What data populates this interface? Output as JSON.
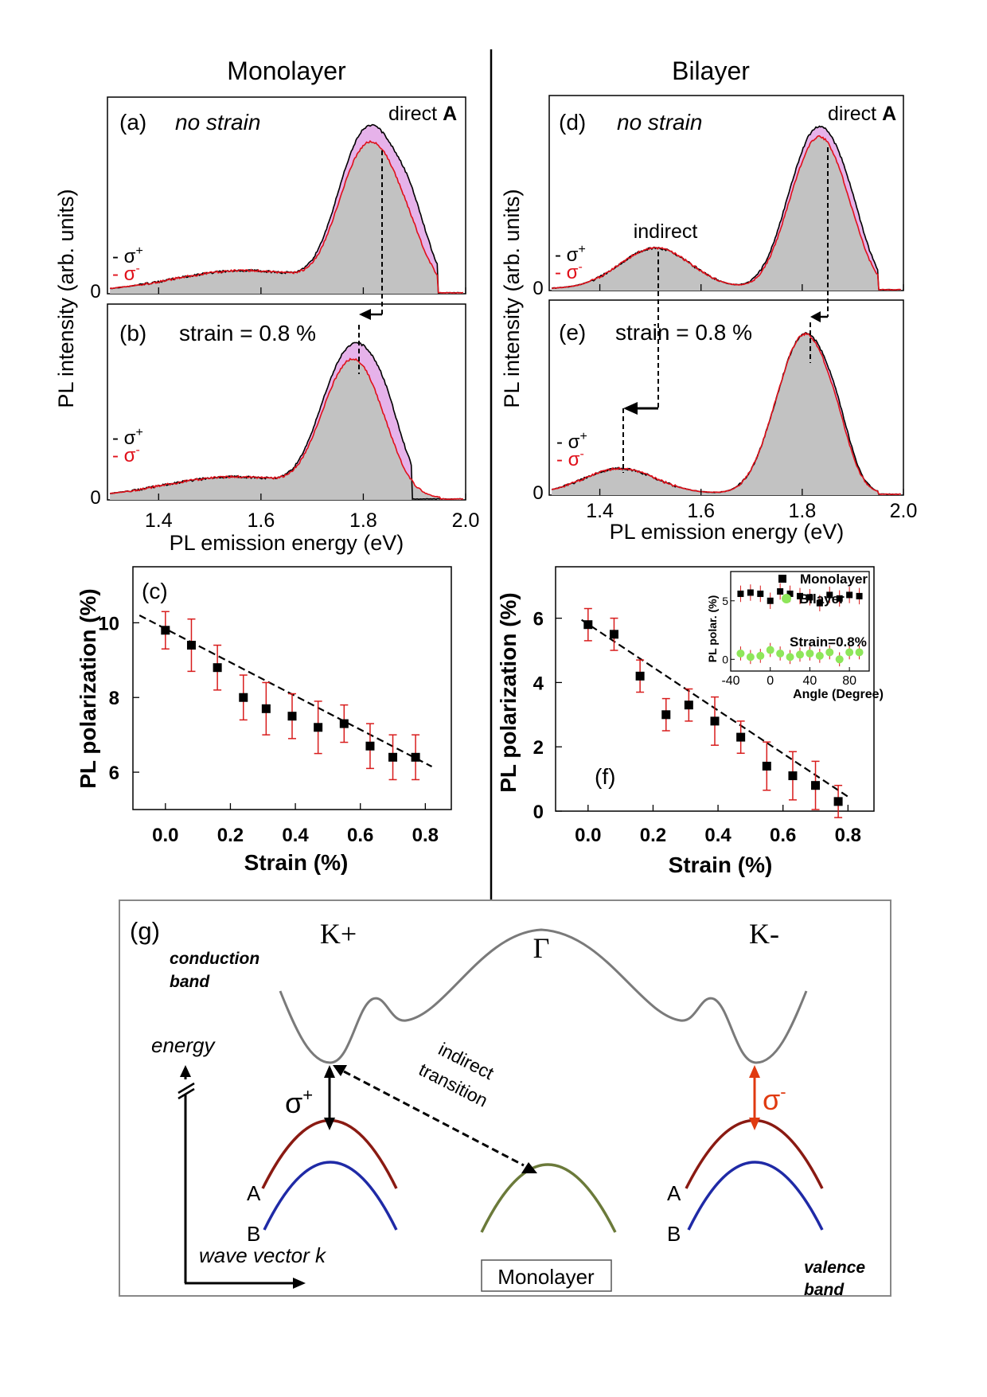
{
  "headers": {
    "left": "Monolayer",
    "right": "Bilayer"
  },
  "shared": {
    "pl_ylabel": "PL intensity (arb. units)",
    "pl_xlabel": "PL emission energy (eV)",
    "pol_ylabel": "PL polarization (%)",
    "strain_xlabel": "Strain (%)",
    "legend_plus_dash": "-",
    "legend_minus_dash": "-",
    "legend_plus": "σ",
    "legend_plus_sup": "+",
    "legend_minus": "σ",
    "legend_minus_sup": "-",
    "zero": "0"
  },
  "panels": {
    "a": {
      "label": "(a)",
      "condition": "no strain",
      "peak_label": "direct ",
      "peak_letter": "A"
    },
    "b": {
      "label": "(b)",
      "condition": "strain = 0.8 %"
    },
    "c": {
      "label": "(c)"
    },
    "d": {
      "label": "(d)",
      "condition": "no strain",
      "peak_label": "direct ",
      "peak_letter": "A",
      "indirect_label": "indirect"
    },
    "e": {
      "label": "(e)",
      "condition": "strain = 0.8 %"
    },
    "f": {
      "label": "(f)"
    },
    "inset": {
      "ylabel": "PL polar. (%)",
      "xlabel": "Angle (Degree)",
      "legend_mono": "Monolayer",
      "legend_bi": "Bilayer",
      "strain": "Strain=0.8%"
    },
    "g": {
      "label": "(g)",
      "kplus": "K+",
      "gamma": "Γ",
      "kminus": "K-",
      "conduction_1": "conduction",
      "conduction_2": "band",
      "energy": "energy",
      "wavevector": "wave vector k",
      "valence_1": "valence",
      "valence_2": "band",
      "indirect_1": "indirect",
      "indirect_2": "transition",
      "sigma_plus": "σ",
      "sigma_plus_sup": "+",
      "sigma_minus": "σ",
      "sigma_minus_sup": "-",
      "A_left": "A",
      "B_left": "B",
      "A_right": "A",
      "B_right": "B",
      "box_label": "Monolayer"
    }
  },
  "colors": {
    "sigma_plus": "#000000",
    "sigma_minus": "#e0101a",
    "fill_gray": "#c2c2c2",
    "fill_pink": "#e6b2ea",
    "error_bar": "#d81c1c",
    "inset_bilayer": "#8ee65a",
    "band_A": "#8a1a12",
    "band_B": "#1f2aa6",
    "band_gamma": "#6b7a3a",
    "band_conduction": "#777777",
    "arrow_sigma_minus": "#e03a10"
  },
  "chart_data": [
    {
      "id": "a",
      "type": "area",
      "title": "no strain",
      "xlabel": "PL emission energy (eV)",
      "ylabel": "PL intensity (arb. units)",
      "xlim": [
        1.3,
        2.0
      ],
      "ylim": [
        0,
        1.1
      ],
      "xticks": [
        "1.4",
        "1.6",
        "1.8",
        "2.0"
      ],
      "xticks_visible": false,
      "series": [
        {
          "name": "σ+",
          "peaks": [
            [
              1.57,
              0.12,
              0.14
            ],
            [
              1.83,
              0.8,
              0.055
            ],
            [
              1.77,
              0.25,
              0.04
            ],
            [
              1.9,
              0.18,
              0.03
            ]
          ],
          "cutoff": 1.945
        },
        {
          "name": "σ-",
          "peaks": [
            [
              1.57,
              0.12,
              0.14
            ],
            [
              1.83,
              0.72,
              0.053
            ],
            [
              1.77,
              0.23,
              0.04
            ],
            [
              1.9,
              0.07,
              0.03
            ]
          ],
          "cutoff": 1.945
        }
      ],
      "annotations": [
        {
          "text": "direct A",
          "x": 1.83
        }
      ]
    },
    {
      "id": "b",
      "type": "area",
      "title": "strain = 0.8 %",
      "xlabel": "PL emission energy (eV)",
      "ylabel": "PL intensity (arb. units)",
      "xlim": [
        1.3,
        2.0
      ],
      "ylim": [
        0,
        1.1
      ],
      "xticks": [
        "1.4",
        "1.6",
        "1.8",
        "2.0"
      ],
      "series": [
        {
          "name": "σ+",
          "peaks": [
            [
              1.55,
              0.12,
              0.14
            ],
            [
              1.79,
              0.72,
              0.05
            ],
            [
              1.73,
              0.22,
              0.04
            ],
            [
              1.85,
              0.22,
              0.035
            ]
          ],
          "cutoff": 1.895
        },
        {
          "name": "σ-",
          "peaks": [
            [
              1.55,
              0.12,
              0.14
            ],
            [
              1.79,
              0.66,
              0.048
            ],
            [
              1.73,
              0.21,
              0.04
            ],
            [
              1.85,
              0.07,
              0.035
            ]
          ],
          "cutoff": 1.95
        }
      ]
    },
    {
      "id": "c",
      "type": "scatter",
      "xlabel": "Strain (%)",
      "ylabel": "PL polarization (%)",
      "xlim": [
        -0.1,
        0.88
      ],
      "ylim": [
        5,
        11.5
      ],
      "xticks": [
        "0.0",
        "0.2",
        "0.4",
        "0.6",
        "0.8"
      ],
      "yticks": [
        "6",
        "8",
        "10"
      ],
      "x": [
        0.0,
        0.08,
        0.16,
        0.24,
        0.31,
        0.39,
        0.47,
        0.55,
        0.63,
        0.7,
        0.77
      ],
      "y": [
        9.8,
        9.4,
        8.8,
        8.0,
        7.7,
        7.5,
        7.2,
        7.3,
        6.7,
        6.4,
        6.4
      ],
      "yerr": [
        0.5,
        0.7,
        0.6,
        0.6,
        0.7,
        0.6,
        0.7,
        0.5,
        0.6,
        0.6,
        0.6
      ],
      "fit": {
        "x": [
          -0.08,
          0.82
        ],
        "y": [
          10.2,
          6.15
        ]
      }
    },
    {
      "id": "d",
      "type": "area",
      "title": "no strain",
      "xlabel": "PL emission energy (eV)",
      "ylabel": "PL intensity (arb. units)",
      "xlim": [
        1.3,
        2.0
      ],
      "ylim": [
        0,
        1.1
      ],
      "xticks": [
        "1.4",
        "1.6",
        "1.8",
        "2.0"
      ],
      "xticks_visible": false,
      "series": [
        {
          "name": "σ+",
          "peaks": [
            [
              1.51,
              0.23,
              0.07
            ],
            [
              1.84,
              0.83,
              0.05
            ],
            [
              1.78,
              0.2,
              0.04
            ],
            [
              1.9,
              0.13,
              0.03
            ]
          ],
          "cutoff": 1.95
        },
        {
          "name": "σ-",
          "peaks": [
            [
              1.51,
              0.23,
              0.07
            ],
            [
              1.84,
              0.78,
              0.048
            ],
            [
              1.78,
              0.19,
              0.04
            ],
            [
              1.9,
              0.08,
              0.03
            ]
          ],
          "cutoff": 1.95
        }
      ],
      "annotations": [
        {
          "text": "direct A",
          "x": 1.84
        },
        {
          "text": "indirect",
          "x": 1.51
        }
      ]
    },
    {
      "id": "e",
      "type": "area",
      "title": "strain = 0.8 %",
      "xlabel": "PL emission energy (eV)",
      "ylabel": "PL intensity (arb. units)",
      "xlim": [
        1.3,
        2.0
      ],
      "ylim": [
        0,
        1.1
      ],
      "xticks": [
        "1.4",
        "1.6",
        "1.8",
        "2.0"
      ],
      "series": [
        {
          "name": "σ+",
          "peaks": [
            [
              1.44,
              0.14,
              0.07
            ],
            [
              1.81,
              0.8,
              0.045
            ],
            [
              1.75,
              0.22,
              0.04
            ],
            [
              1.87,
              0.22,
              0.03
            ]
          ],
          "cutoff": 1.95
        },
        {
          "name": "σ-",
          "peaks": [
            [
              1.44,
              0.14,
              0.07
            ],
            [
              1.81,
              0.8,
              0.045
            ],
            [
              1.75,
              0.22,
              0.04
            ],
            [
              1.87,
              0.18,
              0.03
            ]
          ],
          "cutoff": 1.95
        }
      ]
    },
    {
      "id": "f",
      "type": "scatter",
      "xlabel": "Strain (%)",
      "ylabel": "PL polarization (%)",
      "xlim": [
        -0.1,
        0.88
      ],
      "ylim": [
        0,
        7.6
      ],
      "xticks": [
        "0.0",
        "0.2",
        "0.4",
        "0.6",
        "0.8"
      ],
      "yticks": [
        "0",
        "2",
        "4",
        "6"
      ],
      "x": [
        0.0,
        0.08,
        0.16,
        0.24,
        0.31,
        0.39,
        0.47,
        0.55,
        0.63,
        0.7,
        0.77
      ],
      "y": [
        5.8,
        5.5,
        4.2,
        3.0,
        3.3,
        2.8,
        2.3,
        1.4,
        1.1,
        0.8,
        0.3
      ],
      "yerr": [
        0.5,
        0.5,
        0.5,
        0.5,
        0.5,
        0.75,
        0.5,
        0.75,
        0.75,
        0.75,
        0.5
      ],
      "fit": {
        "x": [
          -0.02,
          0.8
        ],
        "y": [
          5.95,
          0.45
        ]
      }
    },
    {
      "id": "inset",
      "type": "scatter",
      "xlabel": "Angle (Degree)",
      "ylabel": "PL polar. (%)",
      "xlim": [
        -40,
        100
      ],
      "ylim": [
        -1,
        7.5
      ],
      "xticks": [
        "-40",
        "0",
        "40",
        "80"
      ],
      "yticks": [
        "0",
        "5"
      ],
      "series": [
        {
          "name": "Monolayer",
          "x": [
            -30,
            -20,
            -10,
            0,
            10,
            20,
            30,
            40,
            50,
            60,
            70,
            80,
            90
          ],
          "y": [
            5.6,
            5.7,
            5.6,
            5.0,
            5.8,
            5.6,
            5.4,
            5.3,
            4.8,
            5.5,
            5.2,
            5.5,
            5.4
          ],
          "yerr": 0.7
        },
        {
          "name": "Bilayer",
          "x": [
            -30,
            -20,
            -10,
            0,
            10,
            20,
            30,
            40,
            50,
            60,
            70,
            80,
            90
          ],
          "y": [
            0.5,
            0.2,
            0.3,
            0.8,
            0.5,
            0.2,
            0.4,
            0.5,
            0.3,
            0.6,
            0.0,
            0.6,
            0.6
          ],
          "yerr": 0.6
        }
      ]
    }
  ]
}
